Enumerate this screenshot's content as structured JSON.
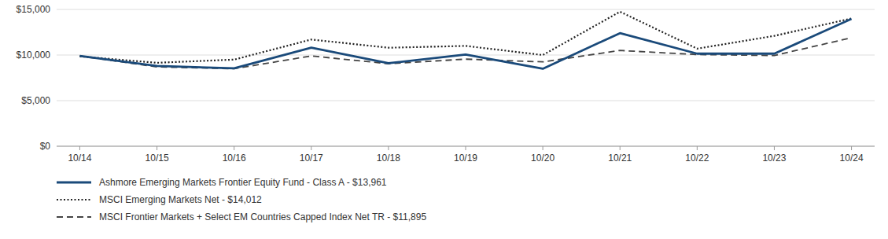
{
  "chart_data": {
    "type": "line",
    "categories": [
      "10/14",
      "10/15",
      "10/16",
      "10/17",
      "10/18",
      "10/19",
      "10/20",
      "10/21",
      "10/22",
      "10/23",
      "10/24"
    ],
    "series": [
      {
        "name": "Ashmore Emerging Markets Frontier Equity Fund - Class A - $13,961",
        "color": "#1a4a7a",
        "line_style": "solid",
        "values": [
          9900,
          8800,
          8550,
          10800,
          9100,
          10050,
          8500,
          12400,
          10150,
          10150,
          13961
        ]
      },
      {
        "name": "MSCI Emerging Markets Net - $14,012",
        "color": "#222222",
        "line_style": "dotted",
        "values": [
          9850,
          9150,
          9500,
          11700,
          10800,
          11000,
          10000,
          14750,
          10700,
          12100,
          14012
        ]
      },
      {
        "name": "MSCI Frontier Markets + Select EM Countries Capped Index Net TR - $11,895",
        "color": "#444444",
        "line_style": "dashed",
        "values": [
          9900,
          8700,
          8500,
          9900,
          9050,
          9550,
          9250,
          10500,
          10050,
          9950,
          11895
        ]
      }
    ],
    "ylim": [
      0,
      15000
    ],
    "yticks": [
      {
        "value": 0,
        "label": "$0"
      },
      {
        "value": 5000,
        "label": "$5,000"
      },
      {
        "value": 10000,
        "label": "$10,000"
      },
      {
        "value": 15000,
        "label": "$15,000"
      }
    ],
    "grid": true,
    "legend": "bottom"
  }
}
